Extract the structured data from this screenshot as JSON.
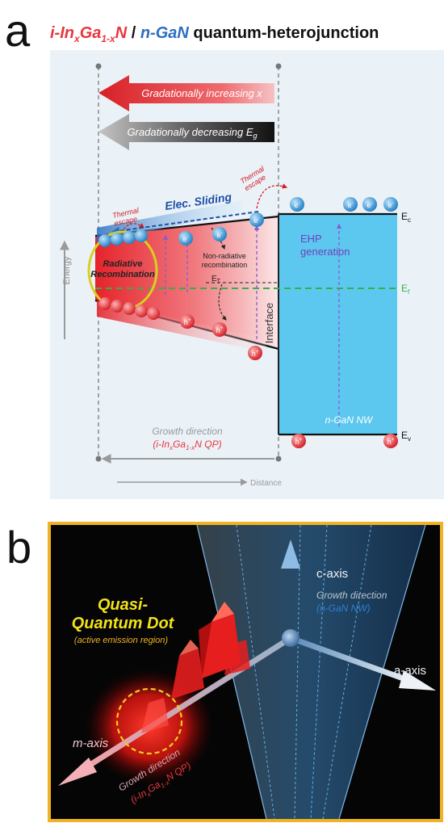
{
  "panel_a": {
    "letter": "a",
    "title": {
      "part1": "i-In",
      "sub1": "x",
      "part2": "Ga",
      "sub2": "1-x",
      "part3": "N",
      "slash": " / ",
      "part4": "n-GaN",
      "part5": " quantum-heterojunction"
    },
    "arrow_top": "Gradationally increasing x",
    "arrow_bottom_text": "Gradationally decreasing E",
    "arrow_bottom_sub": "g",
    "thermal_escape": "Thermal escape",
    "thermal_line1": "Thermal",
    "thermal_line2": "escape",
    "elec_sliding": "Elec. Sliding",
    "energy": "Energy",
    "radiative_line1": "Radiative",
    "radiative_line2": "Recombination",
    "nonrad_line1": "Non-radiative",
    "nonrad_line2": "recombination",
    "et": "E",
    "et_sub": "T",
    "interface": "Interface",
    "ehp_line1": "EHP",
    "ehp_line2": "generation",
    "ec": "E",
    "ec_sub": "c",
    "ef": "E",
    "ef_sub": "f",
    "ev": "E",
    "ev_sub": "v",
    "ngan_nw": "n-GaN NW",
    "growth_line1": "Growth direction",
    "growth_line2": "(i-In",
    "growth_line2_sub1": "x",
    "growth_line2_mid": "Ga",
    "growth_line2_sub2": "1-x",
    "growth_line2_end": "N QP)",
    "distance": "Distance",
    "electron": "e",
    "electron_sup": "-",
    "hole": "h",
    "hole_sup": "+"
  },
  "panel_b": {
    "letter": "b",
    "qd_line1": "Quasi-",
    "qd_line2": "Quantum Dot",
    "qd_line3": "(active emission region)",
    "c_axis": "c-axis",
    "a_axis": "a-axis",
    "m_axis": "m-axis",
    "growth_nw_line1": "Growth direction",
    "growth_nw_line2": "(n-GaN NW)",
    "growth_qp_line1": "Growth direction",
    "growth_qp_line2": "(i-In",
    "growth_qp_sub1": "x",
    "growth_qp_mid": "Ga",
    "growth_qp_sub2": "1-x",
    "growth_qp_end": "N QP)"
  },
  "colors": {
    "red": "#e8373d",
    "blue": "#2c6fc0",
    "cyan": "#5cc8f0",
    "green": "#34b04a",
    "panel_a_bg": "#eaf2f8",
    "panel_b_bg": "#050505",
    "panel_b_border": "#f0b323"
  }
}
